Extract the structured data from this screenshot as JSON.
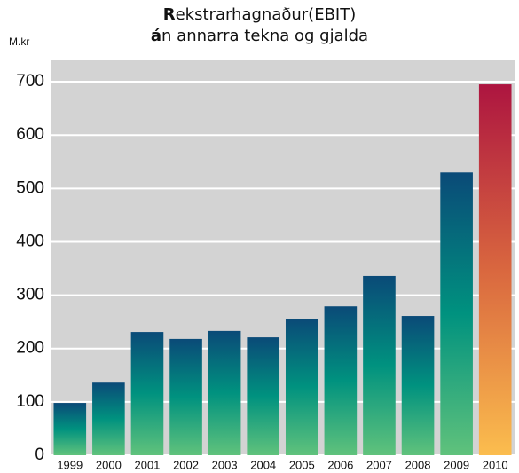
{
  "chart_data": {
    "type": "bar",
    "title": "Rekstrarhagnaður(EBIT)",
    "subtitle": "án annarra tekna og gjalda",
    "y_label": "M.kr",
    "categories": [
      "1999",
      "2000",
      "2001",
      "2002",
      "2003",
      "2004",
      "2005",
      "2006",
      "2007",
      "2008",
      "2009",
      "2010"
    ],
    "values": [
      98,
      136,
      231,
      218,
      233,
      221,
      256,
      279,
      336,
      261,
      530,
      695
    ],
    "colors": [
      [
        "#0a4a78",
        "#00927f",
        "#60c27c"
      ],
      [
        "#0a4a78",
        "#00927f",
        "#60c27c"
      ],
      [
        "#0a4a78",
        "#00927f",
        "#60c27c"
      ],
      [
        "#0a4a78",
        "#00927f",
        "#60c27c"
      ],
      [
        "#0a4a78",
        "#00927f",
        "#60c27c"
      ],
      [
        "#0a4a78",
        "#00927f",
        "#60c27c"
      ],
      [
        "#0a4a78",
        "#00927f",
        "#60c27c"
      ],
      [
        "#0a4a78",
        "#00927f",
        "#60c27c"
      ],
      [
        "#0a4a78",
        "#00927f",
        "#60c27c"
      ],
      [
        "#0a4a78",
        "#00927f",
        "#60c27c"
      ],
      [
        "#0a4a78",
        "#00927f",
        "#60c27c"
      ],
      [
        "#ad1540",
        "#d9673f",
        "#fbbd4e"
      ]
    ],
    "ylim": [
      0,
      740
    ],
    "yticks": [
      0,
      100,
      200,
      300,
      400,
      500,
      600,
      700
    ],
    "grid": true,
    "background": "#d3d3d3",
    "grid_color": "#ffffff"
  }
}
